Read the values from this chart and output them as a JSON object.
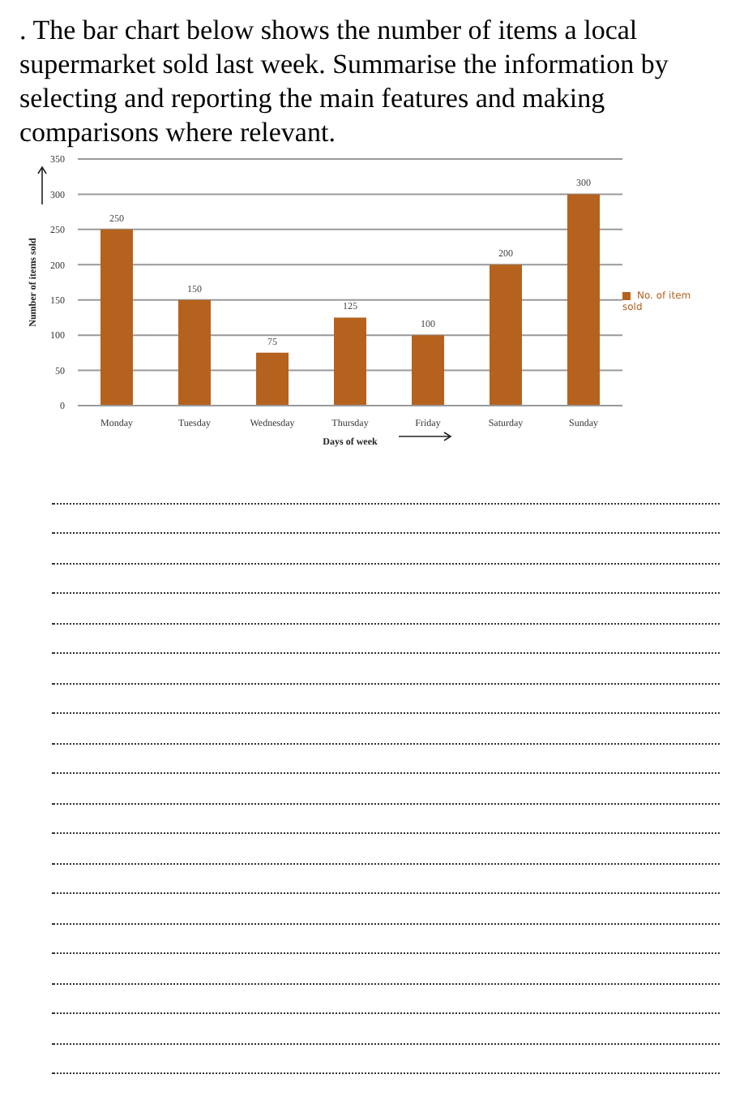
{
  "chart_data": {
    "type": "bar",
    "title": ". The bar chart below shows  the number of items a local supermarket sold last week. Summarise the information by selecting and reporting the main features and making comparisons where relevant.",
    "xlabel": "Days of week",
    "ylabel": "Number of items sold",
    "categories": [
      "Monday",
      "Tuesday",
      "Wednesday",
      "Thursday",
      "Friday",
      "Saturday",
      "Sunday"
    ],
    "series": [
      {
        "name": "No. of item sold",
        "color": "#b5621e",
        "values": [
          250,
          150,
          75,
          125,
          100,
          200,
          300
        ]
      }
    ],
    "ylim": [
      0,
      350
    ],
    "yticks": [
      0,
      50,
      100,
      150,
      200,
      250,
      300,
      350
    ],
    "grid": "y",
    "legend": "right",
    "data_labels": true
  }
}
